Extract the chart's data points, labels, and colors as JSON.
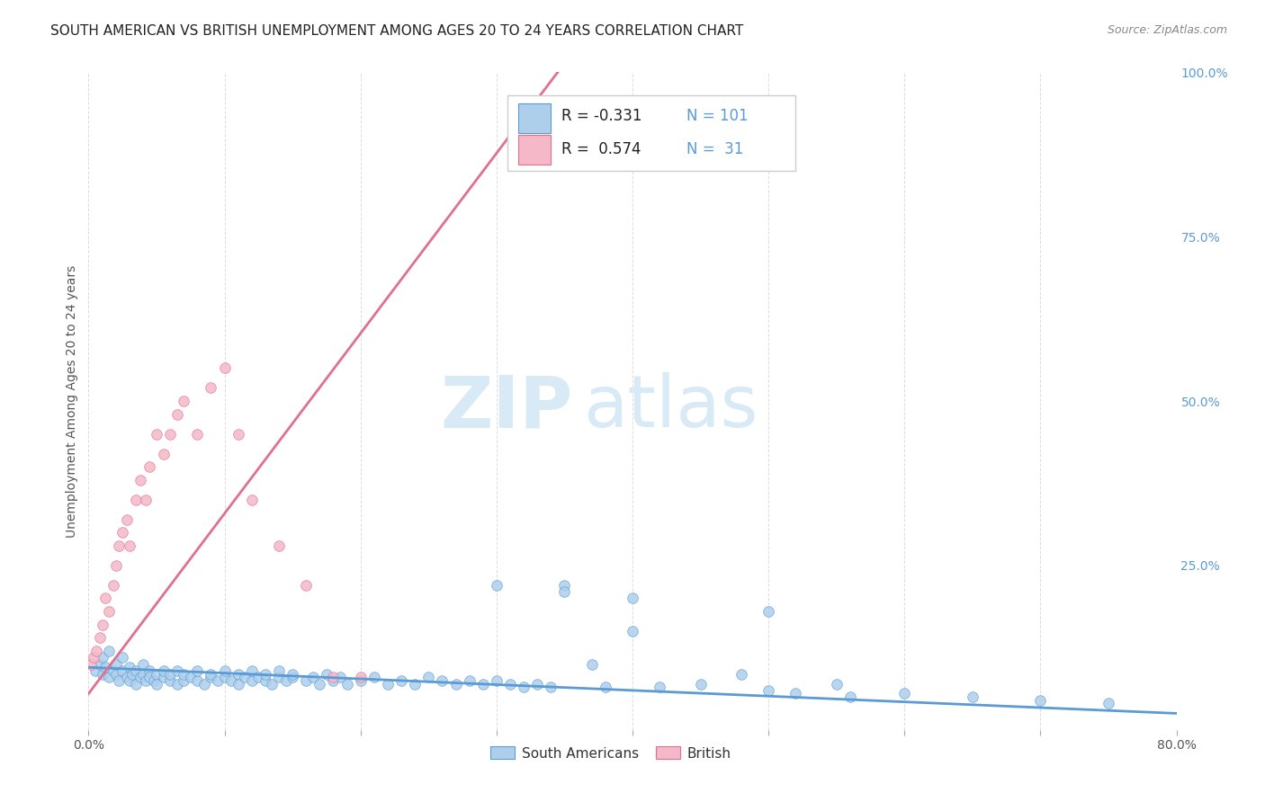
{
  "title": "SOUTH AMERICAN VS BRITISH UNEMPLOYMENT AMONG AGES 20 TO 24 YEARS CORRELATION CHART",
  "source": "Source: ZipAtlas.com",
  "ylabel": "Unemployment Among Ages 20 to 24 years",
  "xlim": [
    0.0,
    0.8
  ],
  "ylim": [
    0.0,
    1.0
  ],
  "xticks": [
    0.0,
    0.1,
    0.2,
    0.3,
    0.4,
    0.5,
    0.6,
    0.7,
    0.8
  ],
  "xticklabels": [
    "0.0%",
    "",
    "",
    "",
    "",
    "",
    "",
    "",
    "80.0%"
  ],
  "yticks_right": [
    0.0,
    0.25,
    0.5,
    0.75,
    1.0
  ],
  "yticklabels_right": [
    "",
    "25.0%",
    "50.0%",
    "75.0%",
    "100.0%"
  ],
  "grid_color": "#dddddd",
  "background_color": "#ffffff",
  "south_americans_color": "#aecfec",
  "british_color": "#f4b8c8",
  "blue_line_color": "#5b9bd5",
  "pink_line_color": "#e07090",
  "R_sa": -0.331,
  "N_sa": 101,
  "R_br": 0.574,
  "N_br": 31,
  "title_fontsize": 11,
  "axis_label_fontsize": 10,
  "tick_fontsize": 10,
  "legend_fontsize": 11,
  "watermark_zip_color": "#d8eaf5",
  "watermark_atlas_color": "#d8eaf5",
  "blue_trend_x": [
    0.0,
    0.8
  ],
  "blue_trend_y": [
    0.095,
    0.025
  ],
  "pink_trend_x": [
    0.0,
    0.345
  ],
  "pink_trend_y": [
    0.055,
    1.0
  ],
  "sa_x": [
    0.005,
    0.008,
    0.01,
    0.01,
    0.012,
    0.015,
    0.015,
    0.018,
    0.02,
    0.02,
    0.022,
    0.025,
    0.025,
    0.028,
    0.03,
    0.03,
    0.032,
    0.035,
    0.035,
    0.038,
    0.04,
    0.04,
    0.042,
    0.045,
    0.045,
    0.048,
    0.05,
    0.05,
    0.055,
    0.055,
    0.06,
    0.06,
    0.065,
    0.065,
    0.07,
    0.07,
    0.075,
    0.08,
    0.08,
    0.085,
    0.09,
    0.09,
    0.095,
    0.1,
    0.1,
    0.105,
    0.11,
    0.11,
    0.115,
    0.12,
    0.12,
    0.125,
    0.13,
    0.13,
    0.135,
    0.14,
    0.14,
    0.145,
    0.15,
    0.15,
    0.16,
    0.165,
    0.17,
    0.175,
    0.18,
    0.185,
    0.19,
    0.2,
    0.21,
    0.22,
    0.23,
    0.24,
    0.25,
    0.26,
    0.27,
    0.28,
    0.29,
    0.3,
    0.31,
    0.32,
    0.33,
    0.34,
    0.35,
    0.37,
    0.38,
    0.4,
    0.42,
    0.45,
    0.5,
    0.5,
    0.55,
    0.6,
    0.65,
    0.7,
    0.75,
    0.48,
    0.52,
    0.56,
    0.3,
    0.35,
    0.4
  ],
  "sa_y": [
    0.09,
    0.1,
    0.085,
    0.11,
    0.095,
    0.08,
    0.12,
    0.09,
    0.085,
    0.1,
    0.075,
    0.09,
    0.11,
    0.08,
    0.095,
    0.075,
    0.085,
    0.09,
    0.07,
    0.08,
    0.085,
    0.1,
    0.075,
    0.09,
    0.08,
    0.075,
    0.085,
    0.07,
    0.08,
    0.09,
    0.075,
    0.085,
    0.07,
    0.09,
    0.075,
    0.085,
    0.08,
    0.075,
    0.09,
    0.07,
    0.08,
    0.085,
    0.075,
    0.08,
    0.09,
    0.075,
    0.085,
    0.07,
    0.08,
    0.075,
    0.09,
    0.08,
    0.075,
    0.085,
    0.07,
    0.08,
    0.09,
    0.075,
    0.08,
    0.085,
    0.075,
    0.08,
    0.07,
    0.085,
    0.075,
    0.08,
    0.07,
    0.075,
    0.08,
    0.07,
    0.075,
    0.07,
    0.08,
    0.075,
    0.07,
    0.075,
    0.07,
    0.075,
    0.07,
    0.065,
    0.07,
    0.065,
    0.22,
    0.1,
    0.065,
    0.2,
    0.065,
    0.07,
    0.18,
    0.06,
    0.07,
    0.055,
    0.05,
    0.045,
    0.04,
    0.085,
    0.055,
    0.05,
    0.22,
    0.21,
    0.15
  ],
  "br_x": [
    0.002,
    0.004,
    0.006,
    0.008,
    0.01,
    0.012,
    0.015,
    0.018,
    0.02,
    0.022,
    0.025,
    0.028,
    0.03,
    0.035,
    0.038,
    0.042,
    0.045,
    0.05,
    0.055,
    0.06,
    0.065,
    0.07,
    0.08,
    0.09,
    0.1,
    0.11,
    0.12,
    0.14,
    0.16,
    0.18,
    0.2
  ],
  "br_y": [
    0.1,
    0.11,
    0.12,
    0.14,
    0.16,
    0.2,
    0.18,
    0.22,
    0.25,
    0.28,
    0.3,
    0.32,
    0.28,
    0.35,
    0.38,
    0.35,
    0.4,
    0.45,
    0.42,
    0.45,
    0.48,
    0.5,
    0.45,
    0.52,
    0.55,
    0.45,
    0.35,
    0.28,
    0.22,
    0.08,
    0.08
  ]
}
